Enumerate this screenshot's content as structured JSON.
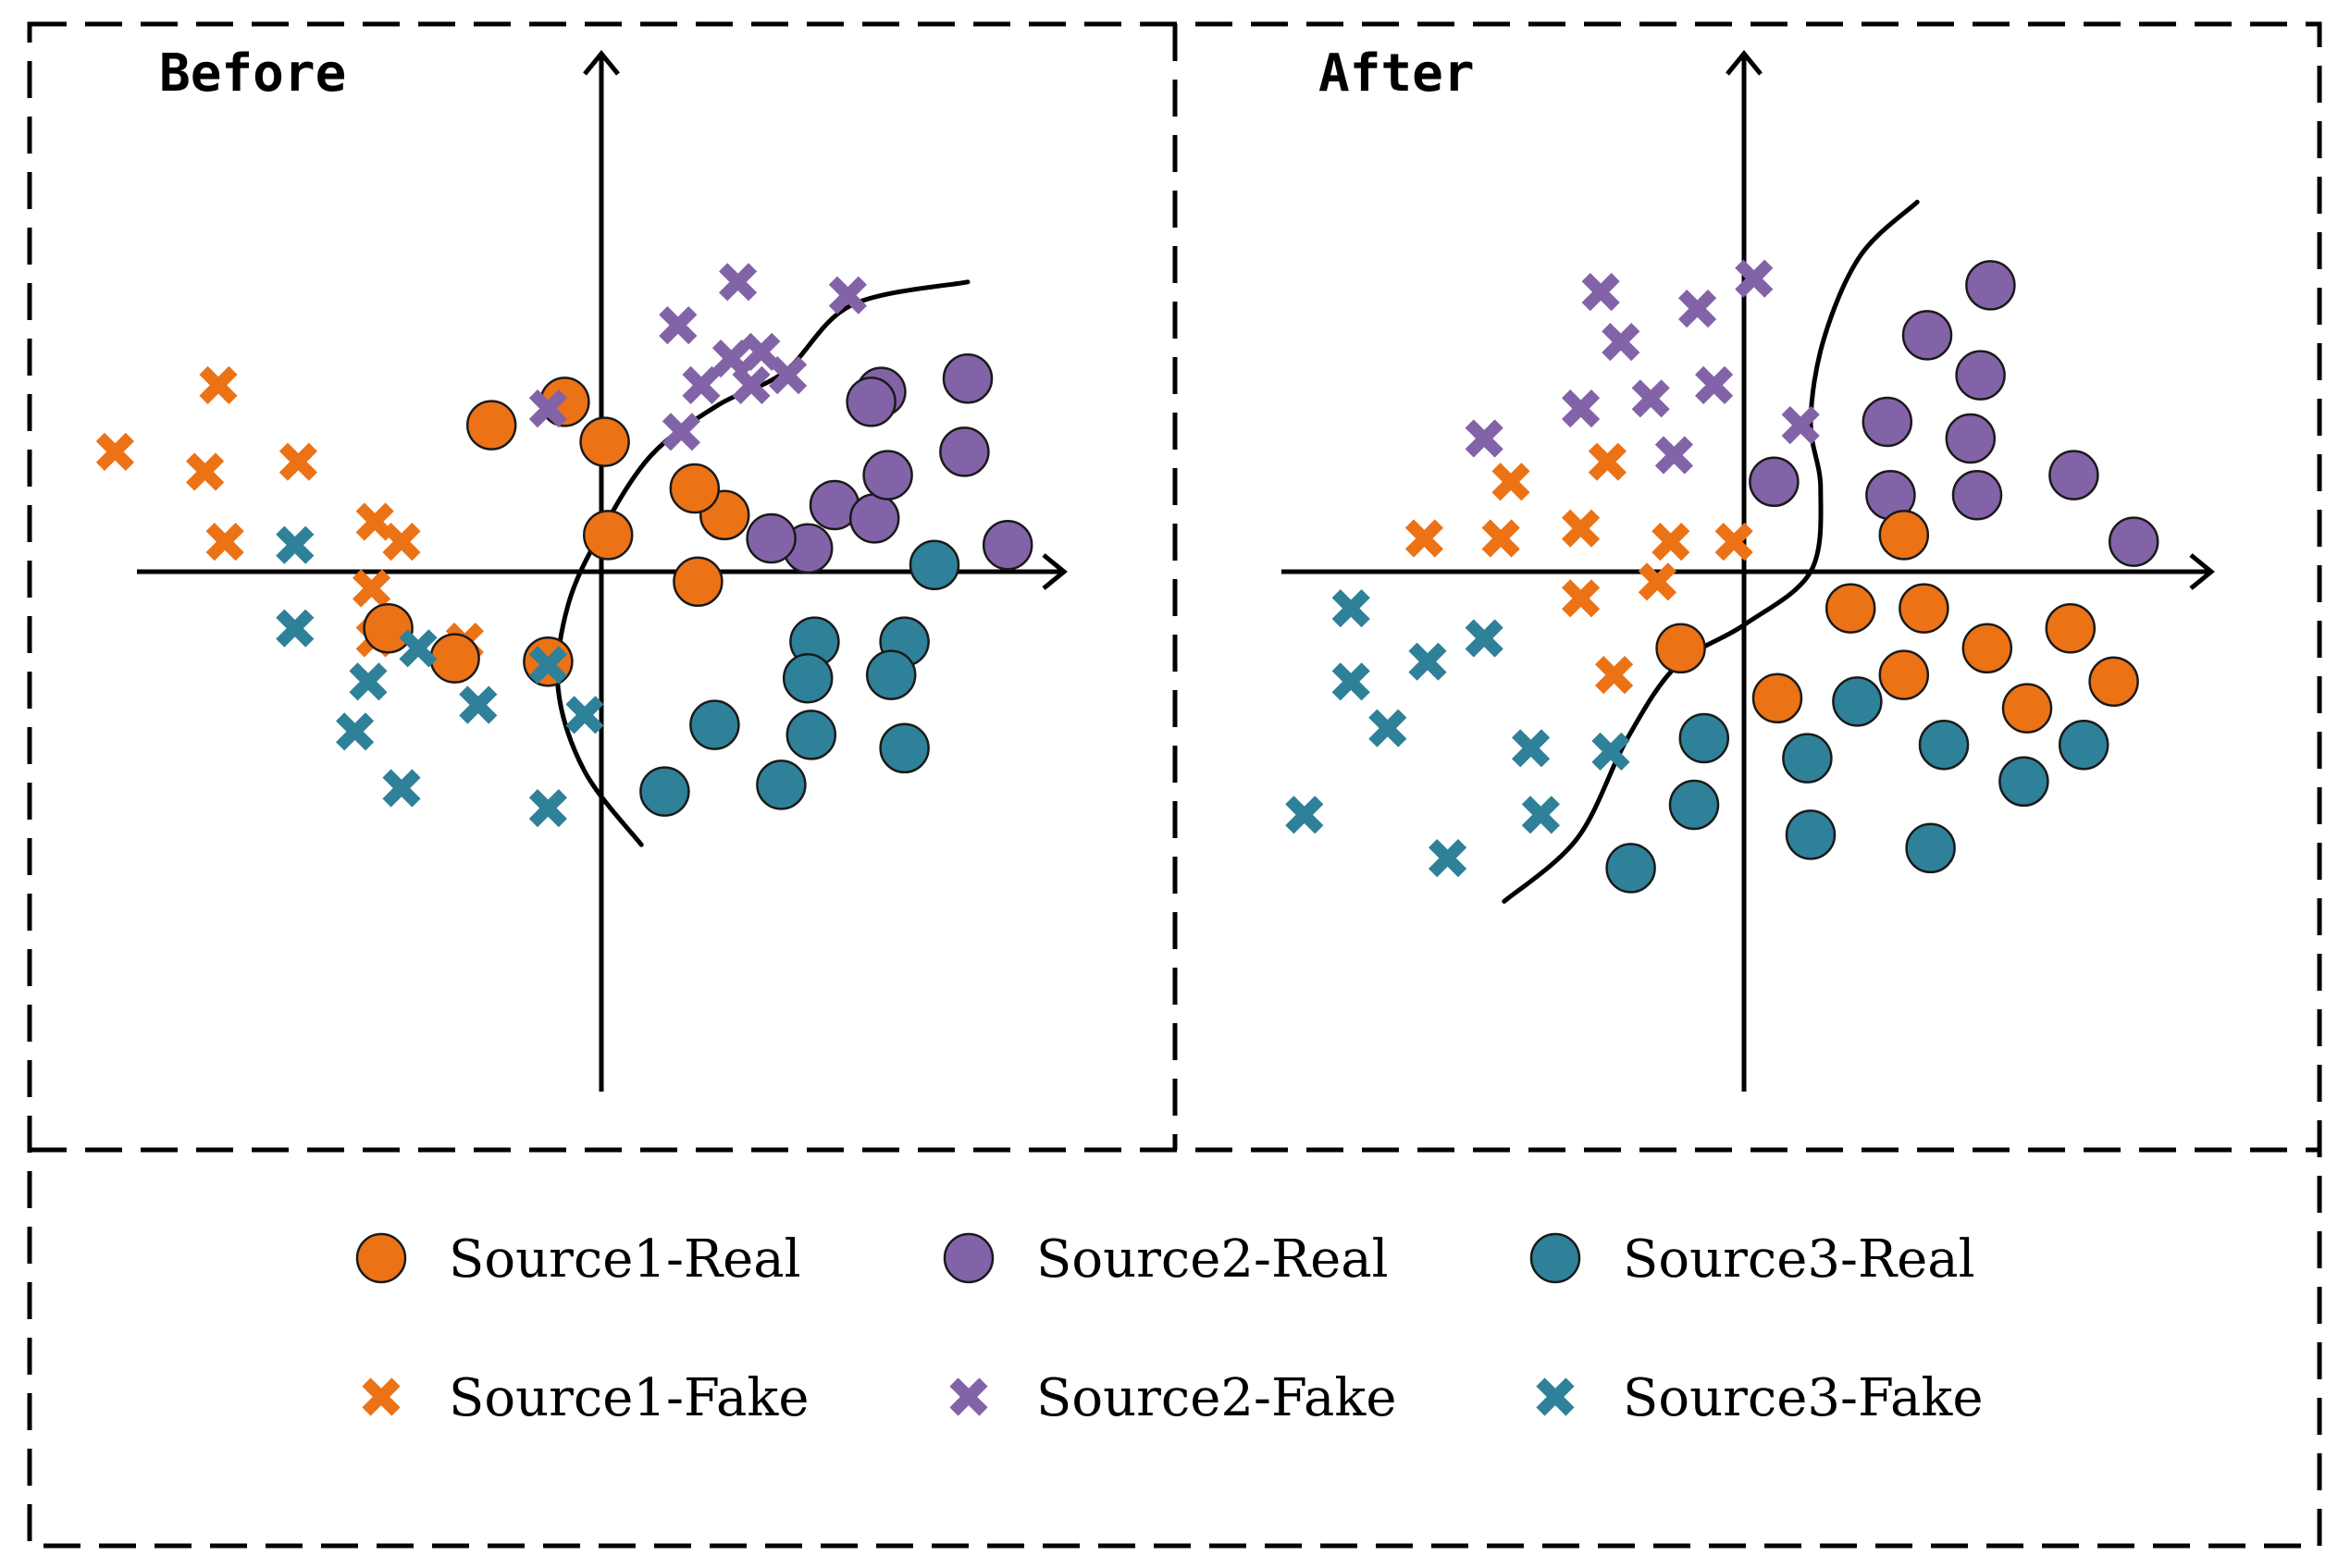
{
  "colors": {
    "source1": "#ec7216",
    "source2": "#8363a8",
    "source3": "#2e8198"
  },
  "panels": [
    {
      "id": "before",
      "title": "Before",
      "points": [
        {
          "c": "source1",
          "k": "fake",
          "x": -14.6,
          "y": -3.6
        },
        {
          "c": "source1",
          "k": "fake",
          "x": -11.5,
          "y": -5.6
        },
        {
          "c": "source1",
          "k": "fake",
          "x": -11.9,
          "y": -3.0
        },
        {
          "c": "source1",
          "k": "fake",
          "x": -11.3,
          "y": -0.9
        },
        {
          "c": "source1",
          "k": "fake",
          "x": -9.1,
          "y": -3.3
        },
        {
          "c": "source1",
          "k": "fake",
          "x": -6.8,
          "y": -1.5
        },
        {
          "c": "source1",
          "k": "fake",
          "x": -6.9,
          "y": 0.5
        },
        {
          "c": "source1",
          "k": "fake",
          "x": -6.8,
          "y": 2.0
        },
        {
          "c": "source1",
          "k": "fake",
          "x": -4.1,
          "y": 2.1
        },
        {
          "c": "source1",
          "k": "fake",
          "x": -6.0,
          "y": -0.9
        },
        {
          "c": "source1",
          "k": "real",
          "x": -3.3,
          "y": -4.4
        },
        {
          "c": "source1",
          "k": "real",
          "x": -1.1,
          "y": -5.1
        },
        {
          "c": "source1",
          "k": "real",
          "x": 0.2,
          "y": -1.1
        },
        {
          "c": "source1",
          "k": "real",
          "x": 3.7,
          "y": -1.7
        },
        {
          "c": "source1",
          "k": "real",
          "x": -6.4,
          "y": 1.7
        },
        {
          "c": "source1",
          "k": "real",
          "x": -4.4,
          "y": 2.6
        },
        {
          "c": "source1",
          "k": "real",
          "x": -1.6,
          "y": 2.7
        },
        {
          "c": "source1",
          "k": "real",
          "x": 2.9,
          "y": 0.3
        },
        {
          "c": "source1",
          "k": "real",
          "x": 2.8,
          "y": -2.5
        },
        {
          "c": "source1",
          "k": "real",
          "x": 0.1,
          "y": -3.9
        },
        {
          "c": "source2",
          "k": "fake",
          "x": 2.4,
          "y": -4.2
        },
        {
          "c": "source2",
          "k": "fake",
          "x": 3.0,
          "y": -5.6
        },
        {
          "c": "source2",
          "k": "fake",
          "x": 5.6,
          "y": -5.9
        },
        {
          "c": "source2",
          "k": "fake",
          "x": 4.8,
          "y": -6.6
        },
        {
          "c": "source2",
          "k": "fake",
          "x": 4.5,
          "y": -5.6
        },
        {
          "c": "source2",
          "k": "fake",
          "x": 2.3,
          "y": -7.4
        },
        {
          "c": "source2",
          "k": "fake",
          "x": 4.1,
          "y": -8.7
        },
        {
          "c": "source2",
          "k": "fake",
          "x": 7.4,
          "y": -8.3
        },
        {
          "c": "source2",
          "k": "fake",
          "x": 3.9,
          "y": -6.4
        },
        {
          "c": "source2",
          "k": "fake",
          "x": -1.6,
          "y": -4.9
        },
        {
          "c": "source2",
          "k": "real",
          "x": 7.0,
          "y": -2.0
        },
        {
          "c": "source2",
          "k": "real",
          "x": 8.4,
          "y": -5.4
        },
        {
          "c": "source2",
          "k": "real",
          "x": 11.0,
          "y": -5.8
        },
        {
          "c": "source2",
          "k": "real",
          "x": 10.9,
          "y": -3.6
        },
        {
          "c": "source2",
          "k": "real",
          "x": 8.2,
          "y": -1.6
        },
        {
          "c": "source2",
          "k": "real",
          "x": 6.2,
          "y": -0.7
        },
        {
          "c": "source2",
          "k": "real",
          "x": 5.1,
          "y": -1.0
        },
        {
          "c": "source2",
          "k": "real",
          "x": 8.6,
          "y": -2.9
        },
        {
          "c": "source2",
          "k": "real",
          "x": 8.1,
          "y": -5.1
        },
        {
          "c": "source2",
          "k": "real",
          "x": 12.2,
          "y": -0.8
        },
        {
          "c": "source3",
          "k": "fake",
          "x": -9.2,
          "y": 1.7
        },
        {
          "c": "source3",
          "k": "fake",
          "x": -9.2,
          "y": -0.8
        },
        {
          "c": "source3",
          "k": "fake",
          "x": -7.0,
          "y": 3.3
        },
        {
          "c": "source3",
          "k": "fake",
          "x": -7.4,
          "y": 4.8
        },
        {
          "c": "source3",
          "k": "fake",
          "x": -3.7,
          "y": 4.0
        },
        {
          "c": "source3",
          "k": "fake",
          "x": -1.6,
          "y": 2.8
        },
        {
          "c": "source3",
          "k": "fake",
          "x": -5.5,
          "y": 2.3
        },
        {
          "c": "source3",
          "k": "fake",
          "x": -0.5,
          "y": 4.3
        },
        {
          "c": "source3",
          "k": "fake",
          "x": -6.0,
          "y": 6.5
        },
        {
          "c": "source3",
          "k": "fake",
          "x": -1.6,
          "y": 7.1
        },
        {
          "c": "source3",
          "k": "real",
          "x": 6.4,
          "y": 2.1
        },
        {
          "c": "source3",
          "k": "real",
          "x": 6.2,
          "y": 3.2
        },
        {
          "c": "source3",
          "k": "real",
          "x": 9.1,
          "y": 2.1
        },
        {
          "c": "source3",
          "k": "real",
          "x": 8.7,
          "y": 3.1
        },
        {
          "c": "source3",
          "k": "real",
          "x": 3.4,
          "y": 4.6
        },
        {
          "c": "source3",
          "k": "real",
          "x": 6.3,
          "y": 4.9
        },
        {
          "c": "source3",
          "k": "real",
          "x": 9.1,
          "y": 5.3
        },
        {
          "c": "source3",
          "k": "real",
          "x": 5.4,
          "y": 6.4
        },
        {
          "c": "source3",
          "k": "real",
          "x": 1.9,
          "y": 6.6
        },
        {
          "c": "source3",
          "k": "real",
          "x": 10.0,
          "y": -0.2
        }
      ],
      "boundary": [
        [
          11.0,
          -8.7
        ],
        [
          7.5,
          -8.0
        ],
        [
          5.5,
          -6.0
        ],
        [
          3.5,
          -5.0
        ],
        [
          1.5,
          -3.5
        ],
        [
          0.0,
          -1.2
        ],
        [
          -1.0,
          1.0
        ],
        [
          -1.3,
          3.5
        ],
        [
          -0.5,
          6.0
        ],
        [
          1.2,
          8.2
        ]
      ]
    },
    {
      "id": "after",
      "title": "After",
      "points": [
        {
          "c": "source2",
          "k": "fake",
          "x": -4.3,
          "y": -8.4
        },
        {
          "c": "source2",
          "k": "fake",
          "x": -1.4,
          "y": -7.9
        },
        {
          "c": "source2",
          "k": "fake",
          "x": 0.3,
          "y": -8.8
        },
        {
          "c": "source2",
          "k": "fake",
          "x": -3.7,
          "y": -6.9
        },
        {
          "c": "source2",
          "k": "fake",
          "x": -0.9,
          "y": -5.6
        },
        {
          "c": "source2",
          "k": "fake",
          "x": -2.8,
          "y": -5.2
        },
        {
          "c": "source2",
          "k": "fake",
          "x": -4.9,
          "y": -4.9
        },
        {
          "c": "source2",
          "k": "fake",
          "x": -7.8,
          "y": -4.0
        },
        {
          "c": "source2",
          "k": "fake",
          "x": -2.1,
          "y": -3.5
        },
        {
          "c": "source2",
          "k": "fake",
          "x": 1.7,
          "y": -4.4
        },
        {
          "c": "source2",
          "k": "real",
          "x": 7.4,
          "y": -8.6
        },
        {
          "c": "source2",
          "k": "real",
          "x": 5.5,
          "y": -7.1
        },
        {
          "c": "source2",
          "k": "real",
          "x": 7.1,
          "y": -5.9
        },
        {
          "c": "source2",
          "k": "real",
          "x": 4.3,
          "y": -4.5
        },
        {
          "c": "source2",
          "k": "real",
          "x": 6.8,
          "y": -4.0
        },
        {
          "c": "source2",
          "k": "real",
          "x": 9.9,
          "y": -2.9
        },
        {
          "c": "source2",
          "k": "real",
          "x": 0.9,
          "y": -2.7
        },
        {
          "c": "source2",
          "k": "real",
          "x": 4.4,
          "y": -2.3
        },
        {
          "c": "source2",
          "k": "real",
          "x": 7.0,
          "y": -2.3
        },
        {
          "c": "source2",
          "k": "real",
          "x": 11.7,
          "y": -0.9
        },
        {
          "c": "source1",
          "k": "fake",
          "x": -7.0,
          "y": -2.7
        },
        {
          "c": "source1",
          "k": "fake",
          "x": -4.1,
          "y": -3.3
        },
        {
          "c": "source1",
          "k": "fake",
          "x": -9.6,
          "y": -1.0
        },
        {
          "c": "source1",
          "k": "fake",
          "x": -7.3,
          "y": -1.0
        },
        {
          "c": "source1",
          "k": "fake",
          "x": -4.9,
          "y": -1.3
        },
        {
          "c": "source1",
          "k": "fake",
          "x": -2.2,
          "y": -0.9
        },
        {
          "c": "source1",
          "k": "fake",
          "x": -0.3,
          "y": -0.9
        },
        {
          "c": "source1",
          "k": "fake",
          "x": -2.6,
          "y": 0.3
        },
        {
          "c": "source1",
          "k": "fake",
          "x": -4.9,
          "y": 0.8
        },
        {
          "c": "source1",
          "k": "fake",
          "x": -3.9,
          "y": 3.1
        },
        {
          "c": "source1",
          "k": "real",
          "x": 4.8,
          "y": -1.1
        },
        {
          "c": "source1",
          "k": "real",
          "x": 3.2,
          "y": 1.1
        },
        {
          "c": "source1",
          "k": "real",
          "x": 5.4,
          "y": 1.1
        },
        {
          "c": "source1",
          "k": "real",
          "x": 7.3,
          "y": 2.3
        },
        {
          "c": "source1",
          "k": "real",
          "x": 9.8,
          "y": 1.7
        },
        {
          "c": "source1",
          "k": "real",
          "x": 4.8,
          "y": 3.1
        },
        {
          "c": "source1",
          "k": "real",
          "x": 1.0,
          "y": 3.8
        },
        {
          "c": "source1",
          "k": "real",
          "x": 8.5,
          "y": 4.1
        },
        {
          "c": "source1",
          "k": "real",
          "x": 11.1,
          "y": 3.3
        },
        {
          "c": "source1",
          "k": "real",
          "x": -1.9,
          "y": 2.3
        },
        {
          "c": "source3",
          "k": "fake",
          "x": -11.8,
          "y": 1.1
        },
        {
          "c": "source3",
          "k": "fake",
          "x": -11.8,
          "y": 3.3
        },
        {
          "c": "source3",
          "k": "fake",
          "x": -9.5,
          "y": 2.7
        },
        {
          "c": "source3",
          "k": "fake",
          "x": -7.8,
          "y": 2.0
        },
        {
          "c": "source3",
          "k": "fake",
          "x": -10.7,
          "y": 4.7
        },
        {
          "c": "source3",
          "k": "fake",
          "x": -6.4,
          "y": 5.3
        },
        {
          "c": "source3",
          "k": "fake",
          "x": -4.0,
          "y": 5.4
        },
        {
          "c": "source3",
          "k": "fake",
          "x": -6.1,
          "y": 7.3
        },
        {
          "c": "source3",
          "k": "fake",
          "x": -13.2,
          "y": 7.3
        },
        {
          "c": "source3",
          "k": "fake",
          "x": -8.9,
          "y": 8.6
        },
        {
          "c": "source3",
          "k": "real",
          "x": 3.4,
          "y": 3.9
        },
        {
          "c": "source3",
          "k": "real",
          "x": -1.2,
          "y": 5.0
        },
        {
          "c": "source3",
          "k": "real",
          "x": 1.9,
          "y": 5.6
        },
        {
          "c": "source3",
          "k": "real",
          "x": 6.0,
          "y": 5.2
        },
        {
          "c": "source3",
          "k": "real",
          "x": 10.2,
          "y": 5.2
        },
        {
          "c": "source3",
          "k": "real",
          "x": -1.5,
          "y": 7.0
        },
        {
          "c": "source3",
          "k": "real",
          "x": 2.0,
          "y": 7.9
        },
        {
          "c": "source3",
          "k": "real",
          "x": 5.6,
          "y": 8.3
        },
        {
          "c": "source3",
          "k": "real",
          "x": 8.4,
          "y": 6.3
        },
        {
          "c": "source3",
          "k": "real",
          "x": -3.4,
          "y": 8.9
        }
      ],
      "boundary": [
        [
          5.2,
          -11.1
        ],
        [
          3.5,
          -9.5
        ],
        [
          2.4,
          -7.0
        ],
        [
          2.0,
          -4.5
        ],
        [
          2.3,
          -2.5
        ],
        [
          2.0,
          0.0
        ],
        [
          0.0,
          1.6
        ],
        [
          -2.0,
          2.8
        ],
        [
          -3.5,
          5.0
        ],
        [
          -5.0,
          8.0
        ],
        [
          -7.2,
          9.9
        ]
      ]
    }
  ],
  "legend": [
    {
      "c": "source1",
      "k": "real",
      "label": "Source1-Real"
    },
    {
      "c": "source2",
      "k": "real",
      "label": "Source2-Real"
    },
    {
      "c": "source3",
      "k": "real",
      "label": "Source3-Real"
    },
    {
      "c": "source1",
      "k": "fake",
      "label": "Source1-Fake"
    },
    {
      "c": "source2",
      "k": "fake",
      "label": "Source2-Fake"
    },
    {
      "c": "source3",
      "k": "fake",
      "label": "Source3-Fake"
    }
  ]
}
